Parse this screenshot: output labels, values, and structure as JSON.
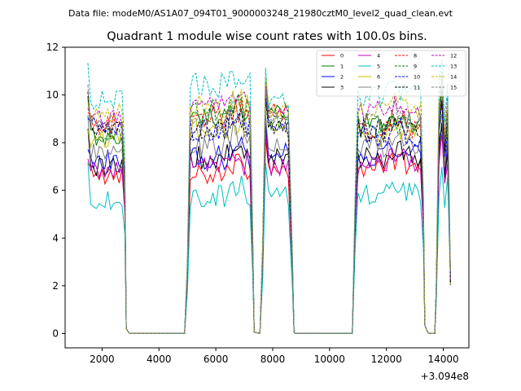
{
  "figure": {
    "suptitle": "Data file: modeM0/AS1A07_094T01_9000003248_21980cztM0_level2_quad_clean.evt",
    "title": "Quadrant 1 module wise count rates with 100.0s bins.",
    "x_offset_label": "+3.094e8"
  },
  "chart_data": {
    "type": "line",
    "title": "Quadrant 1 module wise count rates with 100.0s bins.",
    "xlabel": "",
    "ylabel": "",
    "x_offset": 309400000,
    "xlim": [
      700,
      14900
    ],
    "ylim": [
      -0.6,
      12
    ],
    "xticks": [
      2000,
      4000,
      6000,
      8000,
      10000,
      12000,
      14000
    ],
    "yticks": [
      0,
      2,
      4,
      6,
      8,
      10,
      12
    ],
    "xtick_labels": [
      "2000",
      "4000",
      "6000",
      "8000",
      "10000",
      "12000",
      "14000"
    ],
    "ytick_labels": [
      "0",
      "2",
      "4",
      "6",
      "8",
      "10",
      "12"
    ],
    "grid": false,
    "legend_position": "top-right",
    "legend_columns": 4,
    "segments_note_x": [
      [
        1500,
        2900
      ],
      [
        4900,
        7400
      ],
      [
        7500,
        8800
      ],
      [
        10800,
        13400
      ],
      [
        13700,
        14300
      ]
    ],
    "series": [
      {
        "name": "0",
        "color": "#ff0000",
        "dash": "solid",
        "level1": 6.7,
        "level2": 6.8,
        "level3": 6.8,
        "level4": 7.0,
        "level5": 7.6
      },
      {
        "name": "1",
        "color": "#008000",
        "dash": "solid",
        "level1": 8.3,
        "level2": 9.2,
        "level3": 9.2,
        "level4": 8.8,
        "level5": 9.2
      },
      {
        "name": "2",
        "color": "#0000ff",
        "dash": "solid",
        "level1": 7.3,
        "level2": 7.4,
        "level3": 7.6,
        "level4": 7.5,
        "level5": 8.0
      },
      {
        "name": "3",
        "color": "#000000",
        "dash": "solid",
        "level1": 7.0,
        "level2": 7.4,
        "level3": 7.4,
        "level4": 7.4,
        "level5": 7.7
      },
      {
        "name": "4",
        "color": "#bf00bf",
        "dash": "solid",
        "level1": 6.9,
        "level2": 7.1,
        "level3": 7.0,
        "level4": 7.1,
        "level5": 7.4
      },
      {
        "name": "5",
        "color": "#00bfbf",
        "dash": "solid",
        "level1": 5.6,
        "level2": 5.8,
        "level3": 5.8,
        "level4": 5.9,
        "level5": 6.2
      },
      {
        "name": "6",
        "color": "#bfbf00",
        "dash": "solid",
        "level1": 8.1,
        "level2": 8.5,
        "level3": 8.6,
        "level4": 8.3,
        "level5": 8.6
      },
      {
        "name": "7",
        "color": "#808080",
        "dash": "solid",
        "level1": 7.6,
        "level2": 7.9,
        "level3": 7.9,
        "level4": 7.9,
        "level5": 8.2
      },
      {
        "name": "8",
        "color": "#ff0000",
        "dash": "dashed",
        "level1": 8.8,
        "level2": 9.1,
        "level3": 9.3,
        "level4": 8.6,
        "level5": 9.0
      },
      {
        "name": "9",
        "color": "#008000",
        "dash": "dashed",
        "level1": 8.4,
        "level2": 9.3,
        "level3": 8.9,
        "level4": 8.6,
        "level5": 9.0
      },
      {
        "name": "10",
        "color": "#0000ff",
        "dash": "dashed",
        "level1": 8.6,
        "level2": 8.6,
        "level3": 8.7,
        "level4": 8.3,
        "level5": 8.7
      },
      {
        "name": "11",
        "color": "#000000",
        "dash": "dashed",
        "level1": 8.6,
        "level2": 8.6,
        "level3": 8.6,
        "level4": 8.5,
        "level5": 8.9
      },
      {
        "name": "12",
        "color": "#bf00bf",
        "dash": "dashed",
        "level1": 9.0,
        "level2": 9.6,
        "level3": 9.5,
        "level4": 9.4,
        "level5": 9.7
      },
      {
        "name": "13",
        "color": "#00bfbf",
        "dash": "dashed",
        "level1": 9.8,
        "level2": 10.4,
        "level3": 9.7,
        "level4": 9.9,
        "level5": 10.4
      },
      {
        "name": "14",
        "color": "#bfbf00",
        "dash": "dashed",
        "level1": 9.2,
        "level2": 9.5,
        "level3": 9.4,
        "level4": 9.4,
        "level5": 9.8
      },
      {
        "name": "15",
        "color": "#808080",
        "dash": "dashed",
        "level1": 8.9,
        "level2": 8.9,
        "level3": 9.0,
        "level4": 9.0,
        "level5": 9.4
      }
    ]
  }
}
